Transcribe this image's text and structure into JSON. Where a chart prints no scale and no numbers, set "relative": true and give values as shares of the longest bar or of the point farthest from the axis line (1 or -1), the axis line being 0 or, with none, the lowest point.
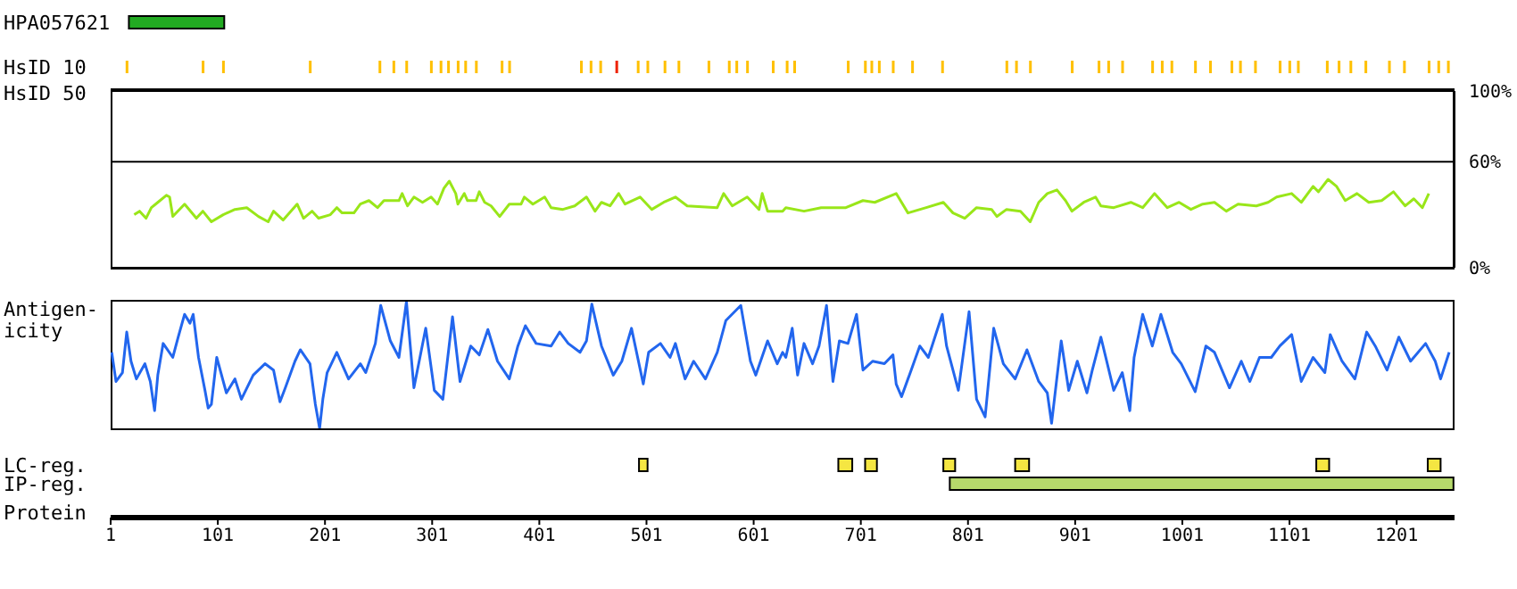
{
  "chart_data": [
    {
      "type": "bar",
      "orientation": "horizontal",
      "categories": [
        "HPA057621",
        "HsID 10"
      ],
      "xlim": [
        1,
        1255
      ],
      "tick_labels": "y",
      "series": [
        {
          "color": "#22aa22",
          "base": [
            18,
            null
          ],
          "values": [
            89,
            null
          ]
        },
        {
          "color": "#ffc000",
          "base": [
            null,
            15
          ],
          "values": [
            null,
            2
          ]
        },
        {
          "color": "#ffc000",
          "base": [
            null,
            86
          ],
          "values": [
            null,
            2
          ]
        },
        {
          "color": "#ffc000",
          "base": [
            null,
            105
          ],
          "values": [
            null,
            2
          ]
        },
        {
          "color": "#ffc000",
          "base": [
            null,
            186
          ],
          "values": [
            null,
            2
          ]
        },
        {
          "color": "#ffc000",
          "base": [
            null,
            251
          ],
          "values": [
            null,
            2
          ]
        },
        {
          "color": "#ffc000",
          "base": [
            null,
            264
          ],
          "values": [
            null,
            2
          ]
        },
        {
          "color": "#ffc000",
          "base": [
            null,
            276
          ],
          "values": [
            null,
            2
          ]
        },
        {
          "color": "#ffc000",
          "base": [
            null,
            299
          ],
          "values": [
            null,
            2
          ]
        },
        {
          "color": "#ffc000",
          "base": [
            null,
            308
          ],
          "values": [
            null,
            2
          ]
        },
        {
          "color": "#ffc000",
          "base": [
            null,
            315
          ],
          "values": [
            null,
            2
          ]
        },
        {
          "color": "#ffc000",
          "base": [
            null,
            324
          ],
          "values": [
            null,
            2
          ]
        },
        {
          "color": "#ffc000",
          "base": [
            null,
            331
          ],
          "values": [
            null,
            2
          ]
        },
        {
          "color": "#ffc000",
          "base": [
            null,
            341
          ],
          "values": [
            null,
            2
          ]
        },
        {
          "color": "#ffc000",
          "base": [
            null,
            365
          ],
          "values": [
            null,
            2
          ]
        },
        {
          "color": "#ffc000",
          "base": [
            null,
            372
          ],
          "values": [
            null,
            2
          ]
        },
        {
          "color": "#ffc000",
          "base": [
            null,
            439
          ],
          "values": [
            null,
            2
          ]
        },
        {
          "color": "#ffc000",
          "base": [
            null,
            448
          ],
          "values": [
            null,
            2
          ]
        },
        {
          "color": "#ffc000",
          "base": [
            null,
            457
          ],
          "values": [
            null,
            2
          ]
        },
        {
          "color": "#ee2200",
          "base": [
            null,
            472
          ],
          "values": [
            null,
            2
          ]
        },
        {
          "color": "#ffc000",
          "base": [
            null,
            492
          ],
          "values": [
            null,
            2
          ]
        },
        {
          "color": "#ffc000",
          "base": [
            null,
            501
          ],
          "values": [
            null,
            2
          ]
        },
        {
          "color": "#ffc000",
          "base": [
            null,
            517
          ],
          "values": [
            null,
            2
          ]
        },
        {
          "color": "#ffc000",
          "base": [
            null,
            530
          ],
          "values": [
            null,
            2
          ]
        },
        {
          "color": "#ffc000",
          "base": [
            null,
            558
          ],
          "values": [
            null,
            2
          ]
        },
        {
          "color": "#ffc000",
          "base": [
            null,
            577
          ],
          "values": [
            null,
            2
          ]
        },
        {
          "color": "#ffc000",
          "base": [
            null,
            584
          ],
          "values": [
            null,
            2
          ]
        },
        {
          "color": "#ffc000",
          "base": [
            null,
            594
          ],
          "values": [
            null,
            2
          ]
        },
        {
          "color": "#ffc000",
          "base": [
            null,
            618
          ],
          "values": [
            null,
            2
          ]
        },
        {
          "color": "#ffc000",
          "base": [
            null,
            631
          ],
          "values": [
            null,
            2
          ]
        },
        {
          "color": "#ffc000",
          "base": [
            null,
            638
          ],
          "values": [
            null,
            2
          ]
        },
        {
          "color": "#ffc000",
          "base": [
            null,
            688
          ],
          "values": [
            null,
            2
          ]
        },
        {
          "color": "#ffc000",
          "base": [
            null,
            704
          ],
          "values": [
            null,
            2
          ]
        },
        {
          "color": "#ffc000",
          "base": [
            null,
            710
          ],
          "values": [
            null,
            2
          ]
        },
        {
          "color": "#ffc000",
          "base": [
            null,
            717
          ],
          "values": [
            null,
            2
          ]
        },
        {
          "color": "#ffc000",
          "base": [
            null,
            730
          ],
          "values": [
            null,
            2
          ]
        },
        {
          "color": "#ffc000",
          "base": [
            null,
            748
          ],
          "values": [
            null,
            2
          ]
        },
        {
          "color": "#ffc000",
          "base": [
            null,
            776
          ],
          "values": [
            null,
            2
          ]
        },
        {
          "color": "#ffc000",
          "base": [
            null,
            836
          ],
          "values": [
            null,
            2
          ]
        },
        {
          "color": "#ffc000",
          "base": [
            null,
            845
          ],
          "values": [
            null,
            2
          ]
        },
        {
          "color": "#ffc000",
          "base": [
            null,
            858
          ],
          "values": [
            null,
            2
          ]
        },
        {
          "color": "#ffc000",
          "base": [
            null,
            897
          ],
          "values": [
            null,
            2
          ]
        },
        {
          "color": "#ffc000",
          "base": [
            null,
            922
          ],
          "values": [
            null,
            2
          ]
        },
        {
          "color": "#ffc000",
          "base": [
            null,
            931
          ],
          "values": [
            null,
            2
          ]
        },
        {
          "color": "#ffc000",
          "base": [
            null,
            944
          ],
          "values": [
            null,
            2
          ]
        },
        {
          "color": "#ffc000",
          "base": [
            null,
            972
          ],
          "values": [
            null,
            2
          ]
        },
        {
          "color": "#ffc000",
          "base": [
            null,
            981
          ],
          "values": [
            null,
            2
          ]
        },
        {
          "color": "#ffc000",
          "base": [
            null,
            990
          ],
          "values": [
            null,
            2
          ]
        },
        {
          "color": "#ffc000",
          "base": [
            null,
            1012
          ],
          "values": [
            null,
            2
          ]
        },
        {
          "color": "#ffc000",
          "base": [
            null,
            1026
          ],
          "values": [
            null,
            2
          ]
        },
        {
          "color": "#ffc000",
          "base": [
            null,
            1046
          ],
          "values": [
            null,
            2
          ]
        },
        {
          "color": "#ffc000",
          "base": [
            null,
            1054
          ],
          "values": [
            null,
            2
          ]
        },
        {
          "color": "#ffc000",
          "base": [
            null,
            1068
          ],
          "values": [
            null,
            2
          ]
        },
        {
          "color": "#ffc000",
          "base": [
            null,
            1091
          ],
          "values": [
            null,
            2
          ]
        },
        {
          "color": "#ffc000",
          "base": [
            null,
            1100
          ],
          "values": [
            null,
            2
          ]
        },
        {
          "color": "#ffc000",
          "base": [
            null,
            1108
          ],
          "values": [
            null,
            2
          ]
        },
        {
          "color": "#ffc000",
          "base": [
            null,
            1135
          ],
          "values": [
            null,
            2
          ]
        },
        {
          "color": "#ffc000",
          "base": [
            null,
            1146
          ],
          "values": [
            null,
            2
          ]
        },
        {
          "color": "#ffc000",
          "base": [
            null,
            1157
          ],
          "values": [
            null,
            2
          ]
        },
        {
          "color": "#ffc000",
          "base": [
            null,
            1171
          ],
          "values": [
            null,
            2
          ]
        },
        {
          "color": "#ffc000",
          "base": [
            null,
            1193
          ],
          "values": [
            null,
            2
          ]
        },
        {
          "color": "#ffc000",
          "base": [
            null,
            1207
          ],
          "values": [
            null,
            2
          ]
        },
        {
          "color": "#ffc000",
          "base": [
            null,
            1230
          ],
          "values": [
            null,
            2
          ]
        },
        {
          "color": "#ffc000",
          "base": [
            null,
            1239
          ],
          "values": [
            null,
            2
          ]
        },
        {
          "color": "#ffc000",
          "base": [
            null,
            1248
          ],
          "values": [
            null,
            2
          ]
        }
      ]
    },
    {
      "type": "line",
      "ylabel": "HsID 50",
      "color": "#99e619",
      "xlim": [
        1,
        1255
      ],
      "ylim": [
        0,
        100
      ],
      "yticks": [
        {
          "value": 0,
          "label": "0%"
        },
        {
          "value": 60,
          "label": "60%"
        },
        {
          "value": 100,
          "label": "100%"
        }
      ],
      "grid": "y",
      "tick_labels": "y",
      "x": [
        23,
        28,
        34,
        39,
        45,
        53,
        56,
        59,
        70,
        81,
        87,
        95,
        106,
        117,
        128,
        139,
        148,
        153,
        162,
        175,
        181,
        189,
        195,
        206,
        212,
        217,
        228,
        234,
        242,
        250,
        256,
        270,
        273,
        278,
        284,
        292,
        300,
        306,
        312,
        317,
        323,
        325,
        331,
        334,
        342,
        345,
        350,
        356,
        364,
        373,
        384,
        387,
        395,
        406,
        412,
        423,
        434,
        445,
        453,
        459,
        467,
        475,
        481,
        495,
        506,
        517,
        528,
        539,
        567,
        573,
        581,
        595,
        606,
        609,
        614,
        628,
        631,
        648,
        664,
        687,
        703,
        714,
        734,
        745,
        762,
        778,
        787,
        798,
        809,
        823,
        828,
        837,
        850,
        859,
        867,
        875,
        884,
        892,
        898,
        909,
        920,
        925,
        937,
        953,
        964,
        975,
        987,
        998,
        1009,
        1020,
        1031,
        1042,
        1053,
        1070,
        1081,
        1089,
        1103,
        1112,
        1123,
        1128,
        1137,
        1145,
        1153,
        1164,
        1175,
        1187,
        1198,
        1209,
        1217,
        1225,
        1231
      ],
      "values": [
        30,
        32,
        28,
        34,
        37,
        41,
        40,
        29,
        36,
        28,
        32,
        26,
        30,
        33,
        34,
        29,
        26,
        32,
        27,
        36,
        28,
        32,
        28,
        30,
        34,
        31,
        31,
        36,
        38,
        34,
        38,
        38,
        42,
        35,
        40,
        37,
        40,
        36,
        45,
        49,
        42,
        36,
        42,
        38,
        38,
        43,
        37,
        35,
        29,
        36,
        36,
        40,
        36,
        40,
        34,
        33,
        35,
        40,
        32,
        37,
        35,
        42,
        36,
        40,
        33,
        37,
        40,
        35,
        34,
        42,
        35,
        40,
        33,
        42,
        32,
        32,
        34,
        32,
        34,
        34,
        38,
        37,
        42,
        31,
        34,
        37,
        31,
        28,
        34,
        33,
        29,
        33,
        32,
        26,
        37,
        42,
        44,
        38,
        32,
        37,
        40,
        35,
        34,
        37,
        34,
        42,
        34,
        37,
        33,
        36,
        37,
        32,
        36,
        35,
        37,
        40,
        42,
        37,
        46,
        43,
        50,
        46,
        38,
        42,
        37,
        38,
        43,
        35,
        39,
        34,
        42
      ]
    },
    {
      "type": "line",
      "ylabel": "Antigen-\nicity",
      "color": "#2266ee",
      "relative": true,
      "xlim": [
        1,
        1255
      ],
      "tick_labels": false,
      "x": [
        2,
        6,
        12,
        16,
        20,
        25,
        33,
        38,
        42,
        45,
        50,
        59,
        64,
        70,
        75,
        78,
        83,
        89,
        92,
        95,
        100,
        109,
        117,
        123,
        134,
        145,
        153,
        159,
        164,
        173,
        178,
        187,
        192,
        196,
        199,
        203,
        212,
        223,
        234,
        239,
        248,
        253,
        262,
        270,
        277,
        284,
        295,
        303,
        311,
        320,
        327,
        337,
        345,
        353,
        362,
        373,
        381,
        388,
        398,
        412,
        420,
        428,
        439,
        445,
        450,
        459,
        470,
        478,
        487,
        498,
        503,
        514,
        523,
        528,
        537,
        545,
        556,
        567,
        575,
        589,
        598,
        603,
        614,
        623,
        628,
        631,
        637,
        642,
        648,
        656,
        662,
        669,
        675,
        681,
        689,
        697,
        703,
        712,
        723,
        731,
        734,
        739,
        748,
        756,
        764,
        777,
        781,
        792,
        802,
        809,
        817,
        825,
        834,
        845,
        856,
        867,
        875,
        879,
        888,
        895,
        903,
        912,
        917,
        925,
        937,
        945,
        952,
        956,
        964,
        973,
        981,
        992,
        1000,
        1013,
        1023,
        1031,
        1045,
        1056,
        1064,
        1073,
        1084,
        1092,
        1103,
        1112,
        1123,
        1134,
        1139,
        1150,
        1162,
        1173,
        1181,
        1192,
        1203,
        1214,
        1228,
        1237,
        1242,
        1250
      ],
      "values": [
        0.6,
        0.37,
        0.44,
        0.76,
        0.53,
        0.39,
        0.51,
        0.37,
        0.14,
        0.42,
        0.67,
        0.56,
        0.72,
        0.9,
        0.83,
        0.9,
        0.56,
        0.3,
        0.16,
        0.19,
        0.56,
        0.28,
        0.39,
        0.23,
        0.42,
        0.51,
        0.46,
        0.21,
        0.32,
        0.53,
        0.62,
        0.51,
        0.19,
        0,
        0.23,
        0.44,
        0.6,
        0.39,
        0.51,
        0.44,
        0.67,
        0.97,
        0.69,
        0.56,
        1,
        0.32,
        0.79,
        0.3,
        0.23,
        0.88,
        0.37,
        0.65,
        0.58,
        0.78,
        0.53,
        0.39,
        0.65,
        0.81,
        0.67,
        0.65,
        0.76,
        0.67,
        0.6,
        0.69,
        0.98,
        0.65,
        0.42,
        0.53,
        0.79,
        0.35,
        0.6,
        0.67,
        0.56,
        0.67,
        0.39,
        0.53,
        0.39,
        0.6,
        0.85,
        0.97,
        0.53,
        0.42,
        0.69,
        0.51,
        0.6,
        0.56,
        0.79,
        0.42,
        0.67,
        0.51,
        0.65,
        0.97,
        0.37,
        0.69,
        0.67,
        0.9,
        0.46,
        0.53,
        0.51,
        0.58,
        0.35,
        0.25,
        0.46,
        0.65,
        0.56,
        0.9,
        0.65,
        0.3,
        0.92,
        0.23,
        0.09,
        0.79,
        0.51,
        0.39,
        0.62,
        0.37,
        0.28,
        0.04,
        0.69,
        0.3,
        0.53,
        0.28,
        0.46,
        0.72,
        0.3,
        0.44,
        0.14,
        0.56,
        0.9,
        0.65,
        0.9,
        0.6,
        0.51,
        0.29,
        0.65,
        0.6,
        0.32,
        0.53,
        0.37,
        0.56,
        0.56,
        0.65,
        0.74,
        0.37,
        0.56,
        0.44,
        0.74,
        0.53,
        0.39,
        0.76,
        0.65,
        0.46,
        0.72,
        0.53,
        0.67,
        0.53,
        0.39,
        0.6
      ]
    },
    {
      "type": "bar",
      "orientation": "horizontal",
      "categories": [
        "LC-reg.",
        "IP-reg."
      ],
      "xlabel": "Protein",
      "xlim": [
        1,
        1255
      ],
      "xticks": [
        1,
        101,
        201,
        301,
        401,
        501,
        601,
        701,
        801,
        901,
        1001,
        1101,
        1201
      ],
      "series": [
        {
          "color": "#f5e642",
          "base": [
            494,
            null
          ],
          "values": [
            8,
            null
          ]
        },
        {
          "color": "#f5e642",
          "base": [
            680,
            null
          ],
          "values": [
            13,
            null
          ]
        },
        {
          "color": "#f5e642",
          "base": [
            705,
            null
          ],
          "values": [
            11,
            null
          ]
        },
        {
          "color": "#f5e642",
          "base": [
            778,
            null
          ],
          "values": [
            11,
            null
          ]
        },
        {
          "color": "#f5e642",
          "base": [
            845,
            null
          ],
          "values": [
            13,
            null
          ]
        },
        {
          "color": "#f5e642",
          "base": [
            1126,
            null
          ],
          "values": [
            12,
            null
          ]
        },
        {
          "color": "#f5e642",
          "base": [
            1230,
            null
          ],
          "values": [
            12,
            null
          ]
        },
        {
          "color": "#b5d96b",
          "base": [
            null,
            784
          ],
          "values": [
            null,
            470
          ]
        }
      ]
    }
  ]
}
